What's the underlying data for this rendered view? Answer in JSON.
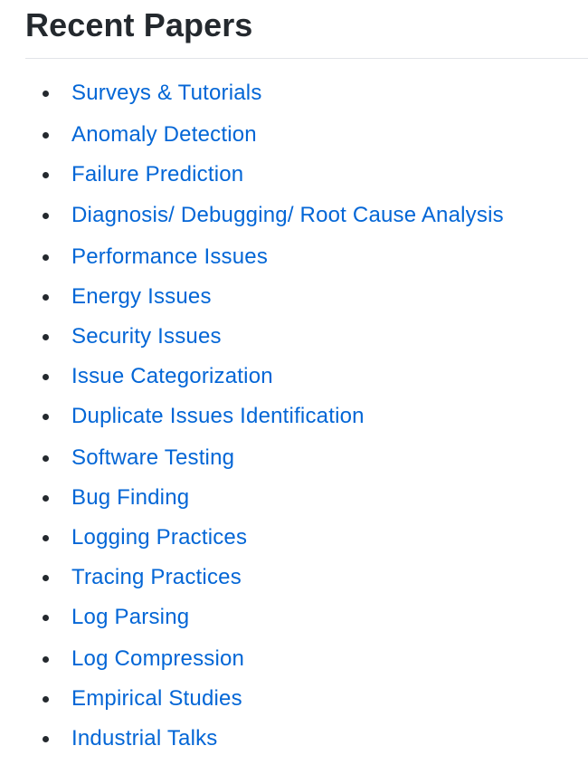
{
  "page": {
    "title": "Recent Papers"
  },
  "colors": {
    "heading": "#24292e",
    "link": "#0366d6",
    "rule": "#e1e4e8"
  },
  "toc": [
    "Surveys & Tutorials",
    "Anomaly Detection",
    "Failure Prediction",
    "Diagnosis/ Debugging/ Root Cause Analysis",
    "Performance Issues",
    "Energy Issues",
    "Security Issues",
    "Issue Categorization",
    "Duplicate Issues Identification",
    "Software Testing",
    "Bug Finding",
    "Logging Practices",
    "Tracing Practices",
    "Log Parsing",
    "Log Compression",
    "Empirical Studies",
    "Industrial Talks"
  ]
}
